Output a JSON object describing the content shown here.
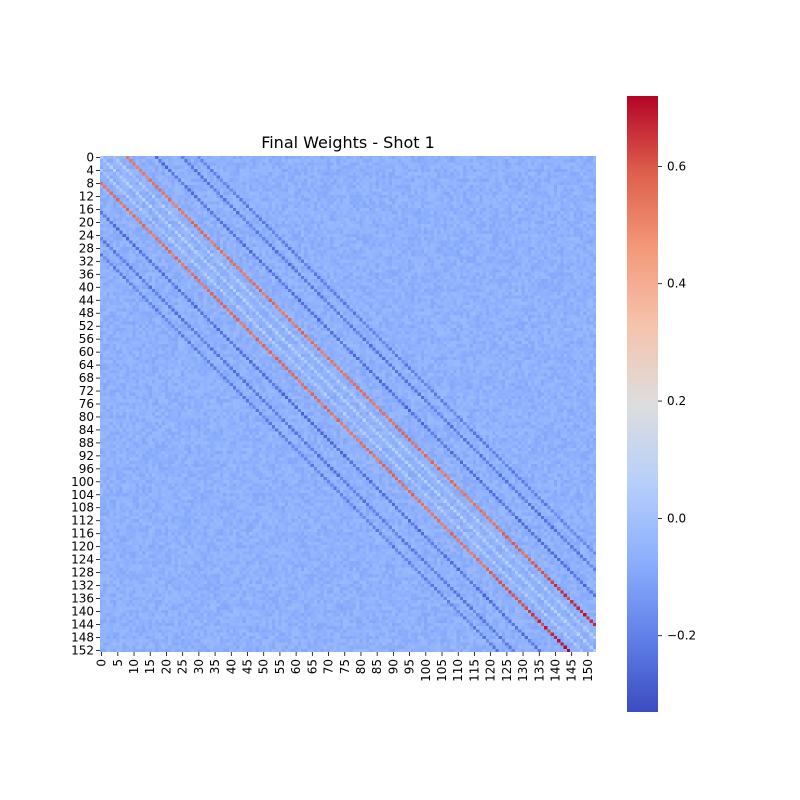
{
  "chart_data": {
    "type": "heatmap",
    "title": "Final Weights - Shot 1",
    "xlabel": "",
    "ylabel": "",
    "rows": 153,
    "cols": 153,
    "x_tick_labels": [
      "0",
      "5",
      "10",
      "15",
      "20",
      "25",
      "30",
      "35",
      "40",
      "45",
      "50",
      "55",
      "60",
      "65",
      "70",
      "75",
      "80",
      "85",
      "90",
      "95",
      "100",
      "105",
      "110",
      "115",
      "120",
      "125",
      "130",
      "135",
      "140",
      "145",
      "150"
    ],
    "y_tick_labels": [
      "0",
      "4",
      "8",
      "12",
      "16",
      "20",
      "24",
      "28",
      "32",
      "36",
      "40",
      "44",
      "48",
      "52",
      "56",
      "60",
      "64",
      "68",
      "72",
      "76",
      "80",
      "84",
      "88",
      "92",
      "96",
      "100",
      "104",
      "108",
      "112",
      "116",
      "120",
      "124",
      "128",
      "132",
      "136",
      "140",
      "144",
      "148",
      "152"
    ],
    "colormap": "coolwarm",
    "vmin": -0.33,
    "vmax": 0.72,
    "background_value": -0.06,
    "colorbar_ticks": [
      {
        "value": -0.2,
        "label": "−0.2"
      },
      {
        "value": 0.0,
        "label": "0.0"
      },
      {
        "value": 0.2,
        "label": "0.2"
      },
      {
        "value": 0.4,
        "label": "0.4"
      },
      {
        "value": 0.6,
        "label": "0.6"
      }
    ],
    "diagonal_bands": [
      {
        "offset": 8,
        "value": 0.55,
        "type": "positive"
      },
      {
        "offset": -8,
        "value": 0.55,
        "type": "positive"
      },
      {
        "offset": 0,
        "value": 0.05,
        "type": "near-zero"
      },
      {
        "offset": 4,
        "value": 0.03,
        "type": "near-zero"
      },
      {
        "offset": -4,
        "value": 0.03,
        "type": "near-zero"
      },
      {
        "offset": 17,
        "value": -0.24,
        "type": "negative"
      },
      {
        "offset": -17,
        "value": -0.24,
        "type": "negative"
      },
      {
        "offset": 25,
        "value": -0.22,
        "type": "negative"
      },
      {
        "offset": -25,
        "value": -0.22,
        "type": "negative"
      },
      {
        "offset": 30,
        "value": -0.2,
        "type": "negative"
      },
      {
        "offset": -30,
        "value": -0.2,
        "type": "negative"
      }
    ]
  }
}
